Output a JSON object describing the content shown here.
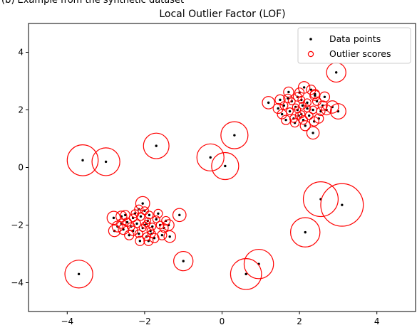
{
  "caption": "(b) Example from the synthetic dataset",
  "chart_data": {
    "type": "scatter",
    "title": "Local Outlier Factor (LOF)",
    "xlabel": "",
    "ylabel": "",
    "xlim": [
      -5,
      5
    ],
    "ylim": [
      -5,
      5
    ],
    "xticks": [
      -4,
      -2,
      0,
      2,
      4
    ],
    "yticks": [
      -4,
      -2,
      0,
      2,
      4
    ],
    "xtick_labels": [
      "−4",
      "−2",
      "0",
      "2",
      "4"
    ],
    "ytick_labels": [
      "−4",
      "−2",
      "0",
      "2",
      "4"
    ],
    "grid": false,
    "legend_position": "top-right",
    "series": [
      {
        "name": "Data points",
        "marker": "dot",
        "color": "#000000",
        "points": [
          [
            -1.92,
            -1.85
          ],
          [
            -2.05,
            -2.1
          ],
          [
            -2.2,
            -1.95
          ],
          [
            -1.8,
            -2.05
          ],
          [
            -2.3,
            -2.2
          ],
          [
            -2.1,
            -1.7
          ],
          [
            -1.95,
            -2.4
          ],
          [
            -2.45,
            -1.9
          ],
          [
            -1.7,
            -1.8
          ],
          [
            -2.15,
            -2.3
          ],
          [
            -2.0,
            -1.5
          ],
          [
            -1.85,
            -2.2
          ],
          [
            -2.35,
            -2.05
          ],
          [
            -2.55,
            -2.15
          ],
          [
            -1.6,
            -2.0
          ],
          [
            -2.25,
            -1.6
          ],
          [
            -1.9,
            -2.55
          ],
          [
            -2.05,
            -1.25
          ],
          [
            -1.5,
            -2.1
          ],
          [
            -2.4,
            -2.35
          ],
          [
            -2.6,
            -1.95
          ],
          [
            -1.75,
            -2.45
          ],
          [
            -2.15,
            -1.45
          ],
          [
            -1.65,
            -1.6
          ],
          [
            -2.7,
            -2.05
          ],
          [
            -1.45,
            -1.85
          ],
          [
            -2.3,
            -1.75
          ],
          [
            -1.55,
            -2.35
          ],
          [
            -2.0,
            -2.0
          ],
          [
            -1.88,
            -1.65
          ],
          [
            -2.12,
            -2.55
          ],
          [
            -2.5,
            -1.65
          ],
          [
            -1.38,
            -2.0
          ],
          [
            -2.78,
            -2.2
          ],
          [
            -1.95,
            -1.95
          ],
          [
            -1.82,
            -2.3
          ],
          [
            1.9,
            2.1
          ],
          [
            2.05,
            1.85
          ],
          [
            2.2,
            2.25
          ],
          [
            1.75,
            1.95
          ],
          [
            2.35,
            2.0
          ],
          [
            1.95,
            2.45
          ],
          [
            2.1,
            1.65
          ],
          [
            1.6,
            2.15
          ],
          [
            2.45,
            2.3
          ],
          [
            1.85,
            1.7
          ],
          [
            2.25,
            1.8
          ],
          [
            2.0,
            2.6
          ],
          [
            1.7,
            2.4
          ],
          [
            2.55,
            1.95
          ],
          [
            1.55,
            1.85
          ],
          [
            2.4,
            2.55
          ],
          [
            2.15,
            1.45
          ],
          [
            1.8,
            2.3
          ],
          [
            2.3,
            2.7
          ],
          [
            1.65,
            1.65
          ],
          [
            2.6,
            2.15
          ],
          [
            1.95,
            2.0
          ],
          [
            2.05,
            2.35
          ],
          [
            1.45,
            2.05
          ],
          [
            2.5,
            1.7
          ],
          [
            2.2,
            2.05
          ],
          [
            1.88,
            1.55
          ],
          [
            2.12,
            2.78
          ],
          [
            1.72,
            2.62
          ],
          [
            2.65,
            2.45
          ],
          [
            2.08,
            2.15
          ],
          [
            2.38,
            1.6
          ],
          [
            1.5,
            2.35
          ],
          [
            2.7,
            2.0
          ],
          [
            1.98,
            1.8
          ],
          [
            -3.6,
            0.25
          ],
          [
            -3.0,
            0.2
          ],
          [
            -1.7,
            0.75
          ],
          [
            -2.8,
            -1.75
          ],
          [
            -1.1,
            -1.65
          ],
          [
            -3.7,
            -3.7
          ],
          [
            -1.0,
            -3.25
          ],
          [
            -0.3,
            0.35
          ],
          [
            0.08,
            0.05
          ],
          [
            0.32,
            1.12
          ],
          [
            0.62,
            -3.7
          ],
          [
            0.95,
            -3.35
          ],
          [
            2.15,
            -2.25
          ],
          [
            2.55,
            -1.1
          ],
          [
            3.1,
            -1.3
          ],
          [
            2.95,
            3.3
          ],
          [
            3.0,
            1.95
          ],
          [
            2.35,
            1.2
          ],
          [
            1.2,
            2.25
          ],
          [
            2.4,
            2.5
          ],
          [
            2.85,
            2.1
          ],
          [
            -2.6,
            -1.7
          ],
          [
            -1.35,
            -2.4
          ]
        ]
      },
      {
        "name": "Outlier scores",
        "marker": "open-circle",
        "color": "#ff0000",
        "radii": [
          0.08,
          0.09,
          0.1,
          0.09,
          0.12,
          0.1,
          0.1,
          0.11,
          0.09,
          0.1,
          0.1,
          0.09,
          0.1,
          0.13,
          0.1,
          0.1,
          0.12,
          0.18,
          0.11,
          0.12,
          0.12,
          0.12,
          0.11,
          0.11,
          0.14,
          0.11,
          0.1,
          0.12,
          0.08,
          0.1,
          0.12,
          0.12,
          0.14,
          0.15,
          0.08,
          0.1,
          0.08,
          0.09,
          0.1,
          0.09,
          0.1,
          0.11,
          0.11,
          0.1,
          0.11,
          0.1,
          0.1,
          0.12,
          0.11,
          0.11,
          0.12,
          0.12,
          0.13,
          0.09,
          0.12,
          0.12,
          0.12,
          0.08,
          0.09,
          0.13,
          0.12,
          0.09,
          0.11,
          0.15,
          0.13,
          0.13,
          0.09,
          0.12,
          0.13,
          0.13,
          0.09,
          0.4,
          0.36,
          0.33,
          0.17,
          0.17,
          0.36,
          0.25,
          0.35,
          0.35,
          0.35,
          0.4,
          0.38,
          0.38,
          0.45,
          0.55,
          0.25,
          0.2,
          0.16,
          0.16,
          0.13,
          0.16,
          0.14,
          0.15
        ]
      }
    ]
  }
}
